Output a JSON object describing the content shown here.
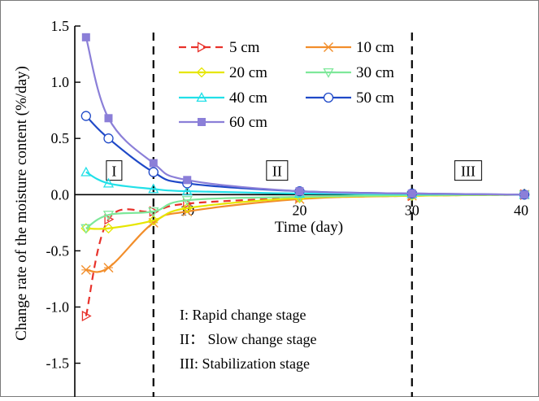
{
  "chart_data": {
    "type": "line",
    "title": "",
    "xlabel": "Time (day)",
    "ylabel": "Change rate of the moisture content (%/day)",
    "xlim": [
      0,
      40
    ],
    "ylim": [
      -1.8,
      1.5
    ],
    "x_ticks": [
      "10",
      "20",
      "30",
      "40"
    ],
    "y_ticks": [
      "1.5",
      "1.0",
      "0.5",
      "0.0",
      "-0.5",
      "-1.0",
      "-1.5"
    ],
    "grid": false,
    "legend_position": "top-center",
    "stage_dividers_x": [
      7,
      30
    ],
    "stage_labels": [
      {
        "label": "I",
        "x": 3.5,
        "y": 0.2
      },
      {
        "label": "II",
        "x": 18,
        "y": 0.2
      },
      {
        "label": "III",
        "x": 35,
        "y": 0.2
      }
    ],
    "annotations": [
      "I:   Rapid change stage",
      "II： Slow change stage",
      "III:   Stabilization stage"
    ],
    "series": [
      {
        "name": "5 cm",
        "color": "#e8322b",
        "dashed": true,
        "marker": "triangle-right",
        "x": [
          1,
          3,
          7,
          10,
          20,
          30,
          40
        ],
        "y": [
          -1.08,
          -0.22,
          -0.15,
          -0.08,
          -0.03,
          -0.01,
          0.0
        ]
      },
      {
        "name": "10 cm",
        "color": "#f28e2b",
        "dashed": false,
        "marker": "x",
        "x": [
          1,
          3,
          7,
          10,
          20,
          30,
          40
        ],
        "y": [
          -0.67,
          -0.65,
          -0.25,
          -0.15,
          -0.04,
          -0.01,
          0.0
        ]
      },
      {
        "name": "20 cm",
        "color": "#e6e600",
        "dashed": false,
        "marker": "diamond",
        "x": [
          1,
          3,
          7,
          10,
          20,
          30,
          40
        ],
        "y": [
          -0.3,
          -0.3,
          -0.23,
          -0.12,
          -0.03,
          -0.01,
          0.0
        ]
      },
      {
        "name": "30 cm",
        "color": "#7ee89a",
        "dashed": false,
        "marker": "triangle-down",
        "x": [
          1,
          3,
          7,
          10,
          20,
          30,
          40
        ],
        "y": [
          -0.3,
          -0.18,
          -0.15,
          -0.05,
          -0.02,
          -0.005,
          0.0
        ]
      },
      {
        "name": "40 cm",
        "color": "#22e0e8",
        "dashed": false,
        "marker": "triangle-up",
        "x": [
          1,
          3,
          7,
          10,
          20,
          30,
          40
        ],
        "y": [
          0.2,
          0.1,
          0.05,
          0.03,
          0.01,
          0.005,
          0.0
        ]
      },
      {
        "name": "50 cm",
        "color": "#1f49c8",
        "dashed": false,
        "marker": "circle",
        "x": [
          1,
          3,
          7,
          10,
          20,
          30,
          40
        ],
        "y": [
          0.7,
          0.5,
          0.2,
          0.1,
          0.03,
          0.01,
          0.0
        ]
      },
      {
        "name": "60 cm",
        "color": "#8b7fd8",
        "dashed": false,
        "marker": "square",
        "x": [
          1,
          3,
          7,
          10,
          20,
          30,
          40
        ],
        "y": [
          1.4,
          0.68,
          0.28,
          0.13,
          0.03,
          0.01,
          0.0
        ]
      }
    ]
  }
}
